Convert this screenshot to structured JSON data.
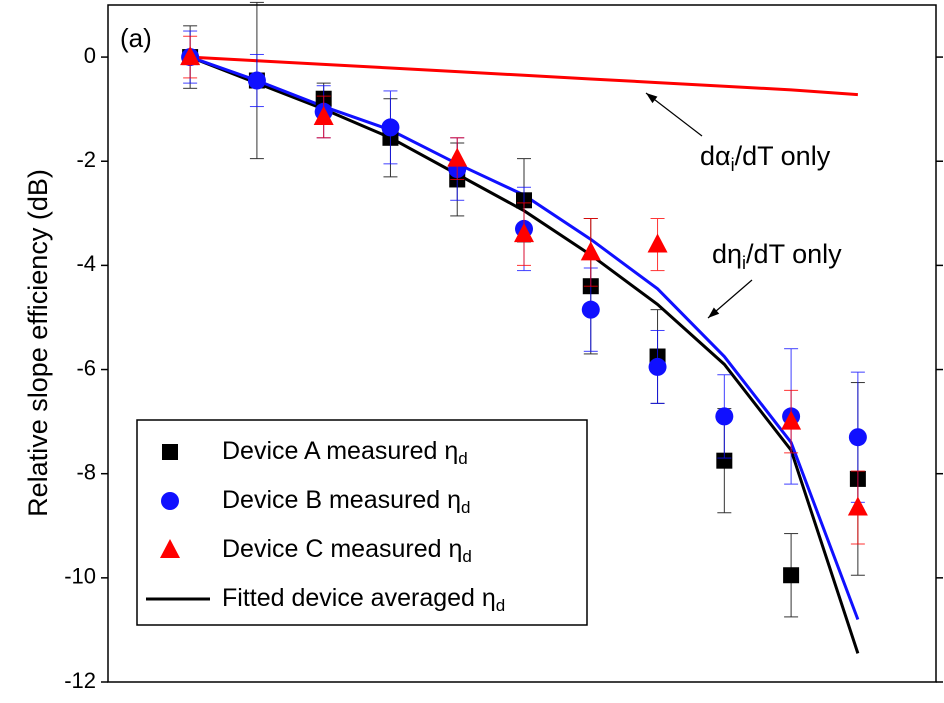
{
  "chart_data": {
    "type": "scatter-fit",
    "y_label": "Relative slope efficiency (dB)",
    "panel_label": "(a)",
    "x": [
      0,
      1,
      2,
      3,
      4,
      5,
      6,
      7,
      8,
      9,
      10
    ],
    "xlim": [
      -1.23,
      11.17
    ],
    "ylim": [
      -12,
      1
    ],
    "yticks": [
      -12,
      -10,
      -8,
      -6,
      -4,
      -2,
      0
    ],
    "series": [
      {
        "kind": "scatter",
        "marker": "square",
        "name": "Device A measured η",
        "name_sub": "d",
        "color": "#000000",
        "values": [
          0,
          -0.45,
          -0.8,
          -1.55,
          -2.35,
          -2.75,
          -4.4,
          -5.75,
          -7.75,
          -9.95,
          -8.1
        ],
        "errors": [
          0.6,
          1.5,
          0.3,
          0.75,
          0.7,
          0.8,
          1.3,
          0.9,
          1.0,
          0.8,
          1.85
        ]
      },
      {
        "kind": "scatter",
        "marker": "circle",
        "name": "Device B measured η",
        "name_sub": "d",
        "color": "#1010ff",
        "values": [
          0,
          -0.45,
          -1.05,
          -1.35,
          -2.15,
          -3.3,
          -4.85,
          -5.95,
          -6.9,
          -6.9,
          -7.3
        ],
        "errors": [
          0.5,
          0.5,
          0.5,
          0.7,
          0.6,
          0.8,
          0.8,
          0.7,
          0.8,
          1.3,
          1.25
        ]
      },
      {
        "kind": "scatter",
        "marker": "triangle",
        "name": "Device C measured η",
        "name_sub": "d",
        "color": "#ff0000",
        "values": [
          0,
          null,
          -1.15,
          null,
          -1.95,
          -3.4,
          -3.75,
          -3.6,
          null,
          -7.0,
          -8.65
        ],
        "errors": [
          0.4,
          null,
          0.4,
          null,
          0.4,
          0.6,
          0.65,
          0.5,
          null,
          0.6,
          0.7
        ]
      },
      {
        "kind": "line",
        "name": "Fitted device averaged η",
        "name_sub": "d",
        "color": "#000000",
        "values": [
          0,
          -0.5,
          -1.0,
          -1.55,
          -2.25,
          -2.95,
          -3.8,
          -4.75,
          -5.9,
          -7.55,
          -11.45
        ]
      },
      {
        "kind": "line",
        "color": "#1010ff",
        "values": [
          0,
          -0.45,
          -0.95,
          -1.4,
          -2.05,
          -2.65,
          -3.5,
          -4.45,
          -5.75,
          -7.4,
          -10.8
        ]
      },
      {
        "kind": "line",
        "color": "#ff0000",
        "values": [
          0,
          -0.07,
          -0.14,
          -0.21,
          -0.28,
          -0.35,
          -0.42,
          -0.49,
          -0.56,
          -0.63,
          -0.72
        ]
      }
    ],
    "annotations": [
      {
        "pre": "dα",
        "sub": "i",
        "post": "/dT only"
      },
      {
        "pre": "dη",
        "sub": "i",
        "post": "/dT only"
      }
    ]
  }
}
